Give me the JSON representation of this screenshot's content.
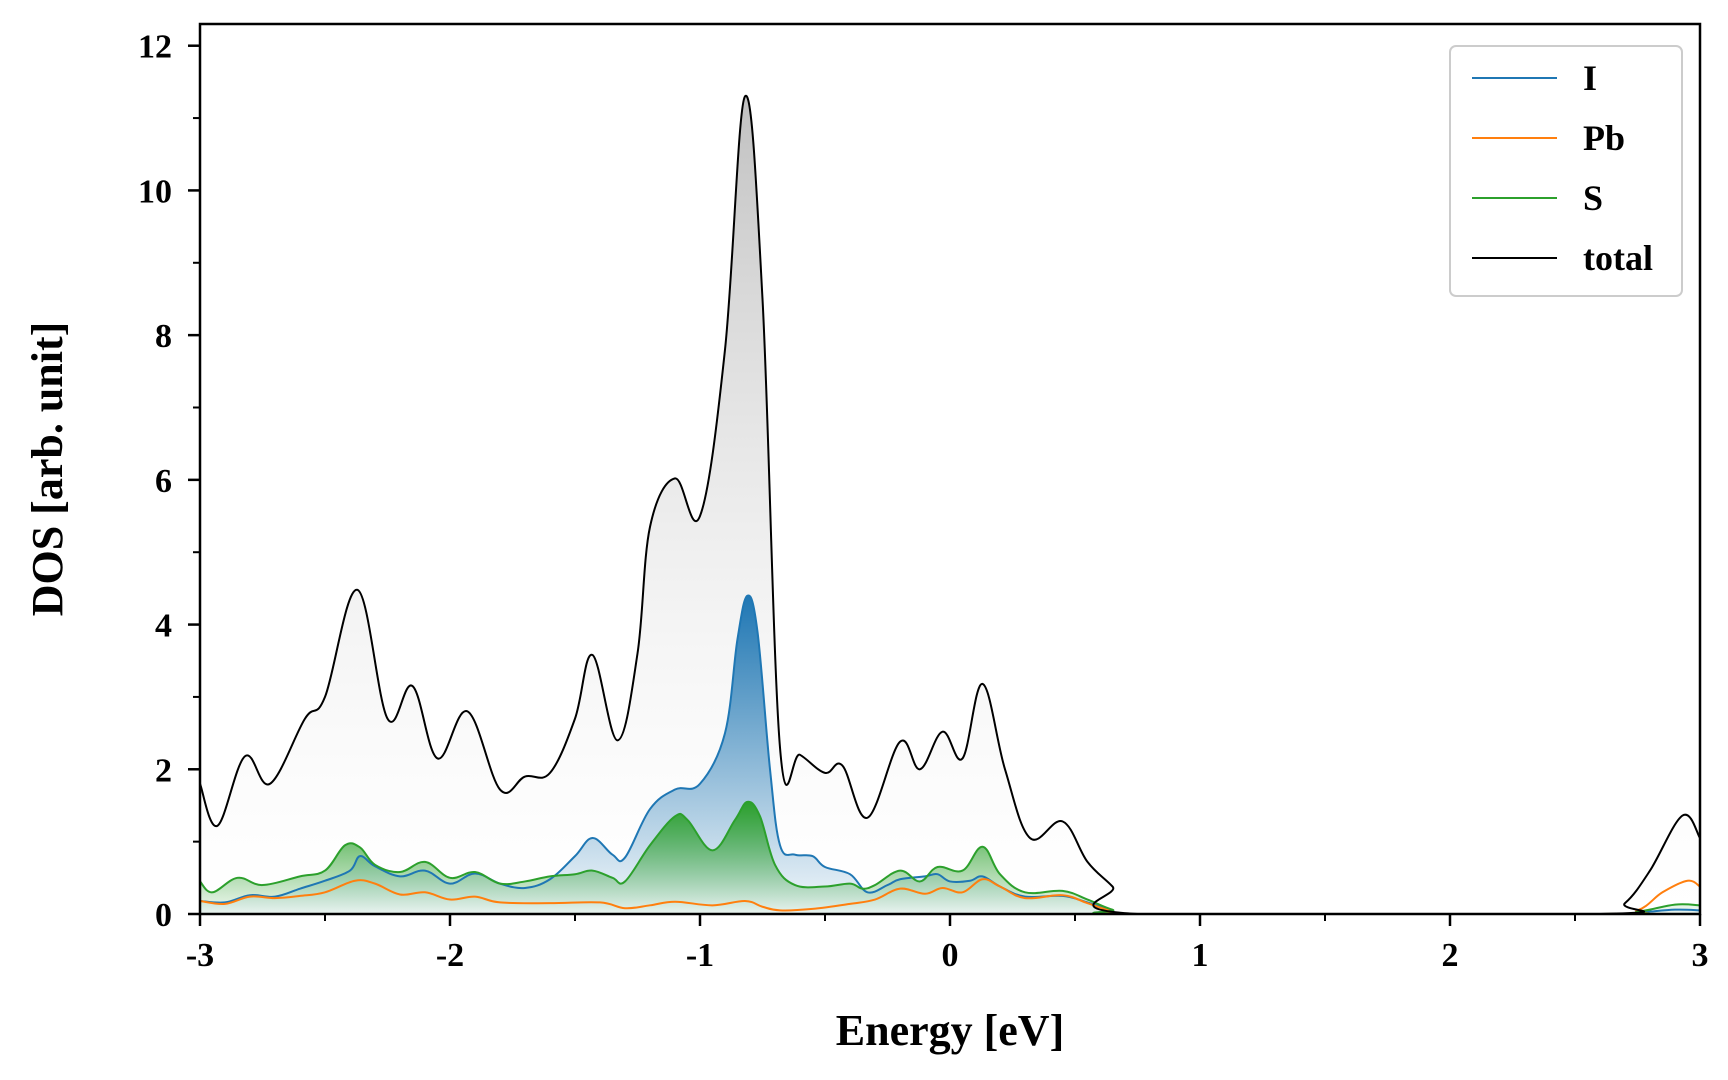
{
  "chart_data": {
    "type": "line",
    "title": "",
    "xlabel": "Energy [eV]",
    "ylabel": "DOS [arb. unit]",
    "xlim": [
      -3,
      3
    ],
    "ylim": [
      0,
      12.3
    ],
    "xticks": [
      -3,
      -2,
      -1,
      0,
      1,
      2,
      3
    ],
    "xtick_labels": [
      "-3",
      "-2",
      "-1",
      "0",
      "1",
      "2",
      "3"
    ],
    "yticks": [
      0,
      2,
      4,
      6,
      8,
      10,
      12
    ],
    "ytick_labels": [
      "0",
      "2",
      "4",
      "6",
      "8",
      "10",
      "12"
    ],
    "grid": false,
    "legend_position": "top-right",
    "series": [
      {
        "name": "I",
        "color": "#1f77b4",
        "fill": "vertical-gradient",
        "points": [
          [
            -3.0,
            0.18
          ],
          [
            -2.9,
            0.16
          ],
          [
            -2.8,
            0.26
          ],
          [
            -2.7,
            0.24
          ],
          [
            -2.6,
            0.35
          ],
          [
            -2.5,
            0.46
          ],
          [
            -2.4,
            0.6
          ],
          [
            -2.36,
            0.8
          ],
          [
            -2.3,
            0.66
          ],
          [
            -2.2,
            0.52
          ],
          [
            -2.1,
            0.6
          ],
          [
            -2.0,
            0.42
          ],
          [
            -1.9,
            0.56
          ],
          [
            -1.8,
            0.42
          ],
          [
            -1.7,
            0.36
          ],
          [
            -1.6,
            0.48
          ],
          [
            -1.5,
            0.8
          ],
          [
            -1.43,
            1.05
          ],
          [
            -1.35,
            0.82
          ],
          [
            -1.3,
            0.78
          ],
          [
            -1.2,
            1.45
          ],
          [
            -1.1,
            1.72
          ],
          [
            -1.0,
            1.8
          ],
          [
            -0.9,
            2.5
          ],
          [
            -0.85,
            3.8
          ],
          [
            -0.81,
            4.4
          ],
          [
            -0.77,
            3.9
          ],
          [
            -0.72,
            2.0
          ],
          [
            -0.68,
            0.95
          ],
          [
            -0.62,
            0.82
          ],
          [
            -0.55,
            0.8
          ],
          [
            -0.5,
            0.65
          ],
          [
            -0.4,
            0.55
          ],
          [
            -0.33,
            0.3
          ],
          [
            -0.25,
            0.4
          ],
          [
            -0.2,
            0.48
          ],
          [
            -0.1,
            0.52
          ],
          [
            -0.05,
            0.55
          ],
          [
            0.0,
            0.45
          ],
          [
            0.08,
            0.46
          ],
          [
            0.13,
            0.52
          ],
          [
            0.2,
            0.38
          ],
          [
            0.3,
            0.24
          ],
          [
            0.45,
            0.25
          ],
          [
            0.55,
            0.16
          ],
          [
            0.65,
            0.05
          ],
          [
            0.75,
            0.0
          ],
          [
            2.6,
            0.0
          ],
          [
            2.75,
            0.02
          ],
          [
            2.9,
            0.06
          ],
          [
            3.0,
            0.05
          ]
        ]
      },
      {
        "name": "Pb",
        "color": "#ff7f0e",
        "fill": "none",
        "points": [
          [
            -3.0,
            0.18
          ],
          [
            -2.9,
            0.14
          ],
          [
            -2.8,
            0.24
          ],
          [
            -2.7,
            0.22
          ],
          [
            -2.6,
            0.25
          ],
          [
            -2.5,
            0.3
          ],
          [
            -2.38,
            0.46
          ],
          [
            -2.3,
            0.42
          ],
          [
            -2.2,
            0.27
          ],
          [
            -2.1,
            0.3
          ],
          [
            -2.0,
            0.2
          ],
          [
            -1.9,
            0.24
          ],
          [
            -1.8,
            0.16
          ],
          [
            -1.6,
            0.15
          ],
          [
            -1.4,
            0.16
          ],
          [
            -1.3,
            0.08
          ],
          [
            -1.2,
            0.12
          ],
          [
            -1.1,
            0.17
          ],
          [
            -0.95,
            0.12
          ],
          [
            -0.82,
            0.18
          ],
          [
            -0.75,
            0.1
          ],
          [
            -0.68,
            0.05
          ],
          [
            -0.55,
            0.07
          ],
          [
            -0.4,
            0.14
          ],
          [
            -0.3,
            0.2
          ],
          [
            -0.2,
            0.35
          ],
          [
            -0.1,
            0.28
          ],
          [
            -0.03,
            0.36
          ],
          [
            0.05,
            0.3
          ],
          [
            0.13,
            0.48
          ],
          [
            0.2,
            0.38
          ],
          [
            0.3,
            0.22
          ],
          [
            0.45,
            0.26
          ],
          [
            0.55,
            0.15
          ],
          [
            0.65,
            0.04
          ],
          [
            0.75,
            0.0
          ],
          [
            2.6,
            0.0
          ],
          [
            2.75,
            0.05
          ],
          [
            2.85,
            0.3
          ],
          [
            2.95,
            0.46
          ],
          [
            3.0,
            0.38
          ]
        ]
      },
      {
        "name": "S",
        "color": "#2ca02c",
        "fill": "vertical-gradient",
        "points": [
          [
            -3.0,
            0.45
          ],
          [
            -2.95,
            0.3
          ],
          [
            -2.85,
            0.5
          ],
          [
            -2.75,
            0.4
          ],
          [
            -2.6,
            0.52
          ],
          [
            -2.5,
            0.6
          ],
          [
            -2.42,
            0.95
          ],
          [
            -2.36,
            0.92
          ],
          [
            -2.3,
            0.68
          ],
          [
            -2.2,
            0.58
          ],
          [
            -2.1,
            0.72
          ],
          [
            -2.0,
            0.5
          ],
          [
            -1.9,
            0.58
          ],
          [
            -1.8,
            0.42
          ],
          [
            -1.7,
            0.45
          ],
          [
            -1.6,
            0.52
          ],
          [
            -1.5,
            0.55
          ],
          [
            -1.43,
            0.6
          ],
          [
            -1.35,
            0.5
          ],
          [
            -1.3,
            0.45
          ],
          [
            -1.2,
            0.95
          ],
          [
            -1.1,
            1.35
          ],
          [
            -1.05,
            1.3
          ],
          [
            -0.95,
            0.88
          ],
          [
            -0.86,
            1.3
          ],
          [
            -0.81,
            1.55
          ],
          [
            -0.76,
            1.35
          ],
          [
            -0.7,
            0.68
          ],
          [
            -0.62,
            0.4
          ],
          [
            -0.5,
            0.38
          ],
          [
            -0.4,
            0.42
          ],
          [
            -0.35,
            0.35
          ],
          [
            -0.3,
            0.4
          ],
          [
            -0.2,
            0.6
          ],
          [
            -0.12,
            0.45
          ],
          [
            -0.05,
            0.65
          ],
          [
            0.05,
            0.6
          ],
          [
            0.13,
            0.93
          ],
          [
            0.2,
            0.55
          ],
          [
            0.3,
            0.3
          ],
          [
            0.45,
            0.32
          ],
          [
            0.55,
            0.2
          ],
          [
            0.65,
            0.06
          ],
          [
            0.75,
            0.0
          ],
          [
            2.6,
            0.0
          ],
          [
            2.75,
            0.03
          ],
          [
            2.9,
            0.13
          ],
          [
            3.0,
            0.12
          ]
        ]
      },
      {
        "name": "total",
        "color": "#000000",
        "fill": "vertical-gradient-gray",
        "points": [
          [
            -3.0,
            1.8
          ],
          [
            -2.93,
            1.22
          ],
          [
            -2.82,
            2.18
          ],
          [
            -2.72,
            1.8
          ],
          [
            -2.58,
            2.7
          ],
          [
            -2.5,
            3.0
          ],
          [
            -2.37,
            4.48
          ],
          [
            -2.25,
            2.7
          ],
          [
            -2.15,
            3.15
          ],
          [
            -2.05,
            2.15
          ],
          [
            -1.93,
            2.8
          ],
          [
            -1.8,
            1.72
          ],
          [
            -1.7,
            1.9
          ],
          [
            -1.6,
            1.95
          ],
          [
            -1.5,
            2.7
          ],
          [
            -1.43,
            3.58
          ],
          [
            -1.33,
            2.4
          ],
          [
            -1.25,
            3.6
          ],
          [
            -1.2,
            5.35
          ],
          [
            -1.1,
            6.02
          ],
          [
            -1.0,
            5.5
          ],
          [
            -0.9,
            7.8
          ],
          [
            -0.82,
            11.3
          ],
          [
            -0.75,
            8.5
          ],
          [
            -0.68,
            2.3
          ],
          [
            -0.6,
            2.2
          ],
          [
            -0.5,
            1.95
          ],
          [
            -0.43,
            2.05
          ],
          [
            -0.33,
            1.33
          ],
          [
            -0.2,
            2.38
          ],
          [
            -0.12,
            2.0
          ],
          [
            -0.03,
            2.52
          ],
          [
            0.05,
            2.15
          ],
          [
            0.13,
            3.18
          ],
          [
            0.22,
            2.0
          ],
          [
            0.32,
            1.05
          ],
          [
            0.45,
            1.28
          ],
          [
            0.55,
            0.72
          ],
          [
            0.65,
            0.38
          ],
          [
            0.75,
            0.0
          ],
          [
            2.6,
            0.0
          ],
          [
            2.7,
            0.15
          ],
          [
            2.8,
            0.6
          ],
          [
            2.93,
            1.36
          ],
          [
            3.0,
            1.05
          ]
        ]
      }
    ]
  }
}
